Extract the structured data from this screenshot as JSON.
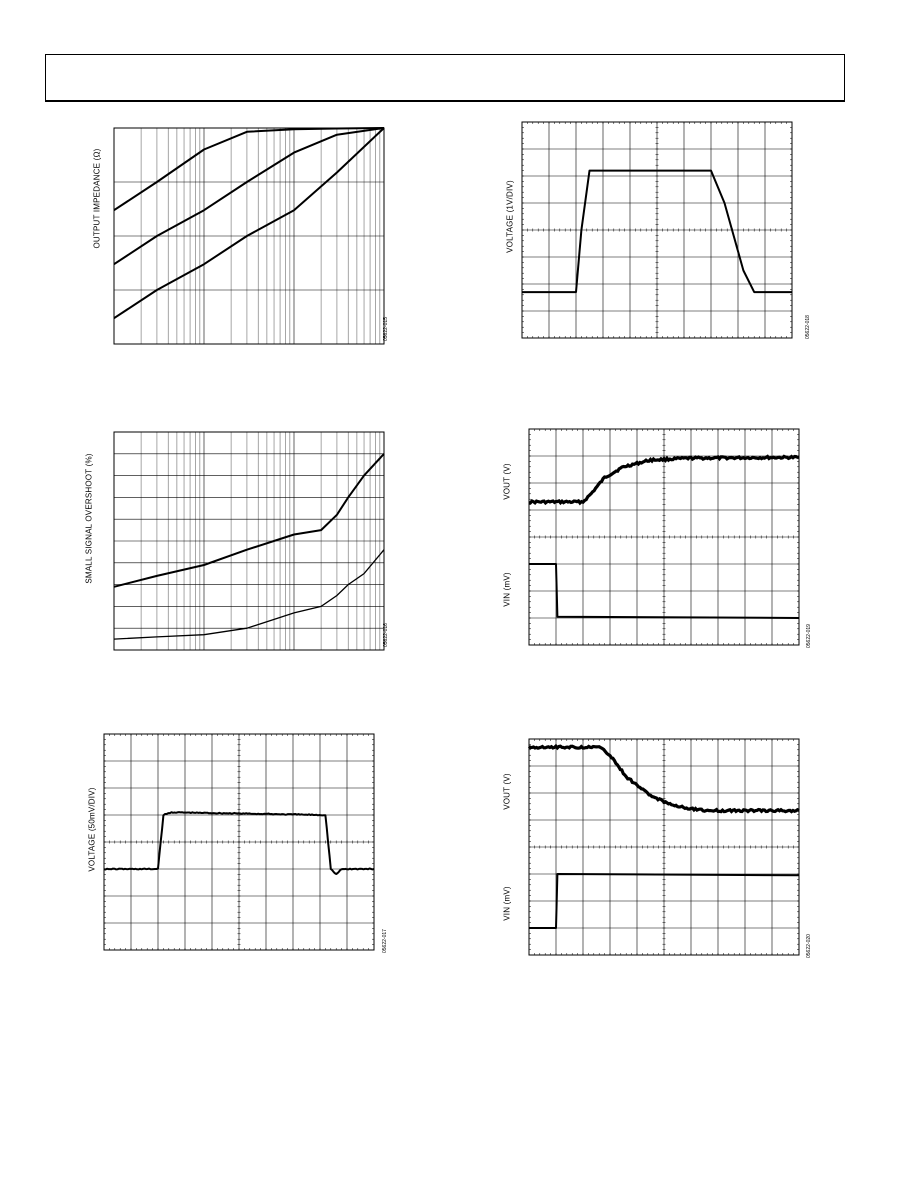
{
  "page": {
    "header_text": ""
  },
  "chart_data": [
    {
      "id": "fig1",
      "type": "line",
      "ylabel": "OUTPUT IMPEDANCE (Ω)",
      "figure_id": "05622-015",
      "xscale": "log",
      "yscale": "log",
      "x": [
        0.001,
        0.003,
        0.01,
        0.03,
        0.1,
        0.3,
        1
      ],
      "series": [
        {
          "values": [
            0.03,
            0.1,
            0.4,
            0.85,
            0.95,
            0.98,
            1.0
          ]
        },
        {
          "values": [
            0.003,
            0.01,
            0.03,
            0.1,
            0.35,
            0.75,
            1.0
          ]
        },
        {
          "values": [
            0.0003,
            0.001,
            0.003,
            0.01,
            0.03,
            0.15,
            1.0
          ]
        }
      ]
    },
    {
      "id": "fig2",
      "type": "line",
      "ylabel": "VOLTAGE (1V/DIV)",
      "figure_id": "05622-018",
      "series": [
        {
          "x": [
            0,
            2,
            2.2,
            2.5,
            7,
            7.5,
            8.2,
            8.6,
            10
          ],
          "values": [
            -2.3,
            -2.3,
            0,
            2.2,
            2.2,
            1.0,
            -1.5,
            -2.3,
            -2.3
          ]
        }
      ]
    },
    {
      "id": "fig3",
      "type": "line",
      "ylabel": "SMALL SIGNAL OVERSHOOT (%)",
      "figure_id": "05622-016",
      "xscale": "log",
      "x": [
        1,
        3,
        10,
        30,
        100,
        200,
        300,
        400,
        600,
        1000
      ],
      "series": [
        {
          "values": [
            2.9,
            3.4,
            3.9,
            4.6,
            5.3,
            5.5,
            6.2,
            7.0,
            8.0,
            9.0
          ]
        },
        {
          "values": [
            0.5,
            0.6,
            0.7,
            1.0,
            1.7,
            2.0,
            2.5,
            3.0,
            3.5,
            4.6
          ]
        }
      ]
    },
    {
      "id": "fig4",
      "type": "line",
      "ylabel_top": "VOUT (V)",
      "ylabel_bottom": "VIN (mV)",
      "figure_id": "05622-019",
      "series": [
        {
          "x": [
            0,
            2,
            2.3,
            2.8,
            3.5,
            4.5,
            6,
            10
          ],
          "values": [
            1.3,
            1.3,
            1.6,
            2.2,
            2.6,
            2.85,
            2.92,
            2.95
          ]
        },
        {
          "x": [
            0,
            1,
            1.05,
            10
          ],
          "values": [
            -1.0,
            -1.0,
            -2.95,
            -3.0
          ]
        }
      ]
    },
    {
      "id": "fig5",
      "type": "line",
      "ylabel": "VOLTAGE (50mV/DIV)",
      "figure_id": "05622-017",
      "series": [
        {
          "x": [
            0,
            2,
            2.2,
            2.5,
            8.2,
            8.4,
            8.6,
            8.8,
            9,
            10
          ],
          "values": [
            -1.0,
            -1.0,
            1.0,
            1.1,
            1.0,
            -1.0,
            -1.2,
            -1.0,
            -1.0,
            -1.0
          ]
        }
      ]
    },
    {
      "id": "fig6",
      "type": "line",
      "ylabel_top": "VOUT (V)",
      "ylabel_bottom": "VIN (mV)",
      "figure_id": "05622-020",
      "series": [
        {
          "x": [
            0,
            2.6,
            3,
            3.6,
            4.5,
            5.5,
            6.5,
            10
          ],
          "values": [
            3.7,
            3.7,
            3.4,
            2.6,
            1.9,
            1.5,
            1.35,
            1.35
          ]
        },
        {
          "x": [
            0,
            1,
            1.05,
            10
          ],
          "values": [
            -3.0,
            -3.0,
            -1.0,
            -1.05
          ]
        }
      ]
    }
  ]
}
